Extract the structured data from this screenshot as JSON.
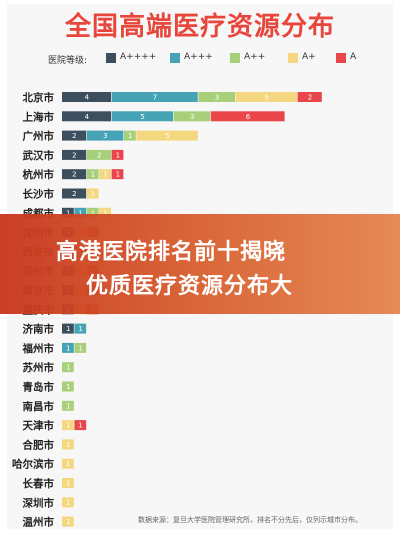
{
  "title": "全国高端医疗资源分布",
  "legend": {
    "label": "医院等级:",
    "items": [
      {
        "name": "A++++",
        "color": "#3d4f5f"
      },
      {
        "name": "A+++",
        "color": "#46a3b5"
      },
      {
        "name": "A++",
        "color": "#a8d07a"
      },
      {
        "name": "A+",
        "color": "#f4d77e"
      },
      {
        "name": "A",
        "color": "#e8464a"
      }
    ]
  },
  "banner": {
    "line1": "高港医院排名前十揭晓",
    "line2": "优质医疗资源分布大"
  },
  "source": "数据来源：复旦大学医院管理研究所。排名不分先后，仅列示城市分布。",
  "chart_data": {
    "type": "bar",
    "orientation": "horizontal",
    "stacked": true,
    "title": "全国高端医疗资源分布",
    "categories": [
      "北京市",
      "上海市",
      "广州市",
      "武汉市",
      "杭州市",
      "长沙市",
      "成都市",
      "沈阳市",
      "西安市",
      "郑州市",
      "南京市",
      "重庆市",
      "济南市",
      "福州市",
      "苏州市",
      "青岛市",
      "南昌市",
      "天津市",
      "合肥市",
      "哈尔滨市",
      "长春市",
      "深圳市",
      "温州市"
    ],
    "series": [
      {
        "name": "A++++",
        "color": "#3d4f5f",
        "values": [
          4,
          4,
          2,
          2,
          2,
          2,
          1,
          1,
          1,
          1,
          1,
          1,
          1,
          0,
          0,
          0,
          0,
          0,
          0,
          0,
          0,
          0,
          0
        ]
      },
      {
        "name": "A+++",
        "color": "#46a3b5",
        "values": [
          7,
          5,
          3,
          0,
          0,
          0,
          1,
          0,
          0,
          0,
          0,
          0,
          1,
          1,
          0,
          0,
          0,
          0,
          0,
          0,
          0,
          0,
          0
        ]
      },
      {
        "name": "A++",
        "color": "#a8d07a",
        "values": [
          3,
          3,
          1,
          2,
          1,
          0,
          1,
          0,
          0,
          0,
          0,
          0,
          0,
          1,
          1,
          1,
          1,
          0,
          0,
          0,
          0,
          0,
          0
        ]
      },
      {
        "name": "A+",
        "color": "#f4d77e",
        "values": [
          5,
          0,
          5,
          0,
          1,
          1,
          1,
          1,
          1,
          1,
          1,
          1,
          0,
          0,
          0,
          0,
          0,
          1,
          1,
          1,
          1,
          1,
          1
        ]
      },
      {
        "name": "A",
        "color": "#e8464a",
        "values": [
          2,
          6,
          0,
          1,
          1,
          0,
          0,
          1,
          1,
          1,
          1,
          1,
          0,
          0,
          0,
          0,
          0,
          1,
          0,
          0,
          0,
          0,
          0
        ]
      }
    ]
  }
}
